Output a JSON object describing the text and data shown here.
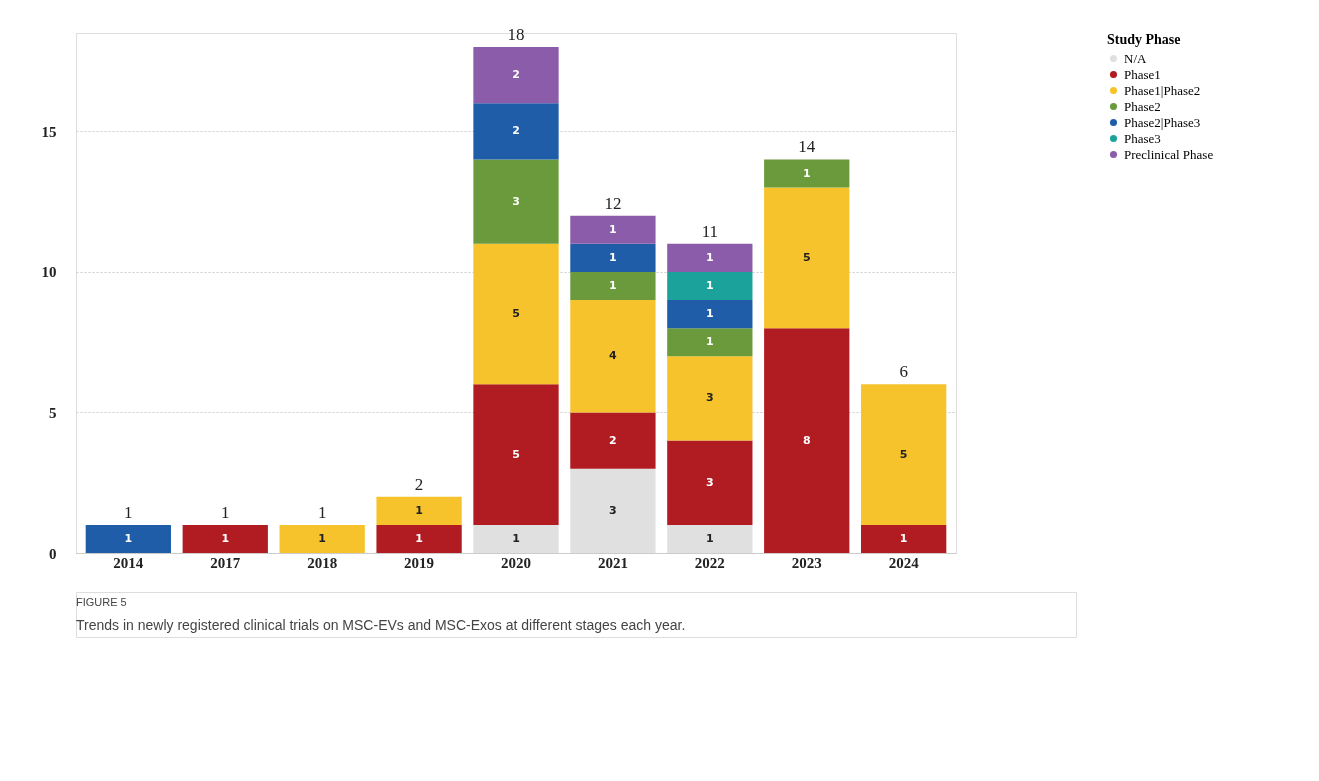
{
  "chart_data": {
    "type": "bar",
    "stacked": true,
    "categories": [
      "2014",
      "2017",
      "2018",
      "2019",
      "2020",
      "2021",
      "2022",
      "2023",
      "2024"
    ],
    "series": [
      {
        "name": "N/A",
        "color": "#e0e0e0",
        "values": [
          null,
          null,
          null,
          null,
          1,
          3,
          1,
          null,
          null
        ]
      },
      {
        "name": "Phase1",
        "color": "#b11c22",
        "values": [
          null,
          1,
          null,
          1,
          5,
          2,
          3,
          8,
          1
        ]
      },
      {
        "name": "Phase1|Phase2",
        "color": "#f6c32c",
        "values": [
          null,
          null,
          1,
          1,
          5,
          4,
          3,
          5,
          5
        ]
      },
      {
        "name": "Phase2",
        "color": "#6a9a3b",
        "values": [
          null,
          null,
          null,
          null,
          3,
          1,
          1,
          1,
          null
        ]
      },
      {
        "name": "Phase2|Phase3",
        "color": "#1f5da8",
        "values": [
          1,
          null,
          null,
          null,
          2,
          1,
          1,
          null,
          null
        ]
      },
      {
        "name": "Phase3",
        "color": "#1ba39b",
        "values": [
          null,
          null,
          null,
          null,
          null,
          null,
          1,
          null,
          null
        ]
      },
      {
        "name": "Preclinical Phase",
        "color": "#8a5ca9",
        "values": [
          null,
          null,
          null,
          null,
          2,
          1,
          1,
          null,
          null
        ]
      }
    ],
    "totals": [
      "1",
      "1",
      "1",
      "2",
      "18",
      "12",
      "11",
      "14",
      "6"
    ],
    "data_labels": true,
    "ylim": [
      0,
      18.5
    ],
    "yticks": [
      0,
      5,
      10,
      15
    ],
    "grid": "y",
    "legend": "top right",
    "legend_title": "Study Phase",
    "annotations": [
      "FIGURE 5",
      "Trends in newly registered clinical trials on MSC-EVs and MSC-Exos at different stages each year."
    ]
  }
}
